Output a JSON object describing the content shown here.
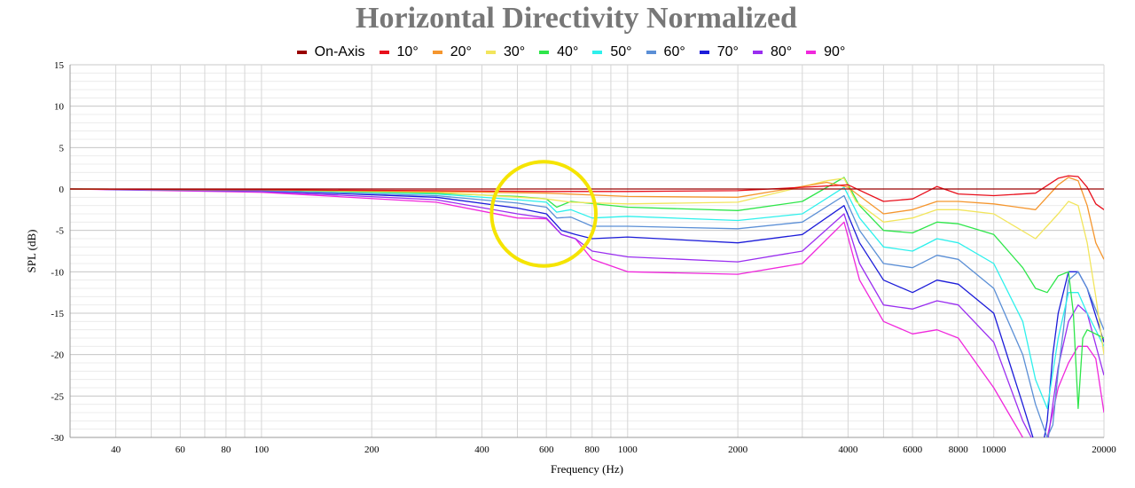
{
  "chart_data": {
    "type": "line",
    "title": "Horizontal Directivity Normalized",
    "xlabel": "Frequency (Hz)",
    "ylabel": "SPL (dB)",
    "xscale": "log",
    "xlim": [
      30,
      20000
    ],
    "ylim": [
      -30,
      15
    ],
    "grid": true,
    "legend_position": "top",
    "x_ticks": [
      40,
      60,
      80,
      100,
      200,
      400,
      600,
      800,
      1000,
      2000,
      4000,
      6000,
      8000,
      10000,
      20000
    ],
    "x_tick_labels": [
      "40",
      "60",
      "80",
      "100",
      "200",
      "400",
      "600",
      "800",
      "1000",
      "2000",
      "4000",
      "6000",
      "8000",
      "10000",
      "20000"
    ],
    "y_ticks": [
      15,
      10,
      5,
      0,
      -5,
      -10,
      -15,
      -20,
      -25,
      -30
    ],
    "y_tick_labels": [
      "15",
      "10",
      "5",
      "0",
      "-5",
      "-10",
      "-15",
      "-20",
      "-25",
      "-30"
    ],
    "annotation": {
      "shape": "circle",
      "color": "#f5e400",
      "center": [
        590,
        -3
      ],
      "radius_db": 6.3
    },
    "series": [
      {
        "name": "On-Axis",
        "color": "#990000",
        "x": [
          30,
          20000
        ],
        "y": [
          0,
          0
        ]
      },
      {
        "name": "10°",
        "color": "#e8101c",
        "x": [
          30,
          100,
          300,
          600,
          1000,
          2000,
          3000,
          4000,
          5000,
          6000,
          7000,
          8000,
          10000,
          13000,
          15000,
          16000,
          17000,
          18000,
          19000,
          20000
        ],
        "y": [
          0,
          -0.1,
          -0.2,
          -0.3,
          -0.3,
          -0.2,
          0.2,
          0.5,
          -1.5,
          -1.2,
          0.3,
          -0.6,
          -0.8,
          -0.5,
          1.3,
          1.6,
          1.5,
          0.2,
          -1.8,
          -2.5
        ]
      },
      {
        "name": "20°",
        "color": "#f5962e",
        "x": [
          30,
          100,
          300,
          600,
          1000,
          2000,
          3500,
          4000,
          5000,
          6000,
          7000,
          8000,
          10000,
          13000,
          15000,
          16000,
          17000,
          18000,
          19000,
          20000
        ],
        "y": [
          0,
          -0.1,
          -0.3,
          -0.5,
          -0.9,
          -1.0,
          0.8,
          0.2,
          -3.0,
          -2.5,
          -1.5,
          -1.5,
          -1.8,
          -2.5,
          0.5,
          1.4,
          1.0,
          -2.0,
          -6.5,
          -8.5
        ]
      },
      {
        "name": "30°",
        "color": "#f2e55c",
        "x": [
          30,
          100,
          300,
          600,
          700,
          1000,
          2000,
          3500,
          3900,
          4200,
          5000,
          6000,
          7000,
          8000,
          10000,
          13000,
          15000,
          16000,
          17000,
          18000,
          19000,
          20000
        ],
        "y": [
          0,
          -0.1,
          -0.4,
          -1.2,
          -1.6,
          -1.8,
          -1.6,
          1.0,
          1.3,
          -1.5,
          -4.0,
          -3.5,
          -2.5,
          -2.5,
          -3.0,
          -6.0,
          -3.0,
          -1.5,
          -2.0,
          -6.5,
          -13.0,
          -20.0
        ]
      },
      {
        "name": "40°",
        "color": "#2ee64a",
        "x": [
          30,
          100,
          300,
          500,
          600,
          640,
          700,
          1000,
          2000,
          3000,
          3900,
          4300,
          5000,
          6000,
          7000,
          8000,
          10000,
          12000,
          13000,
          14000,
          15000,
          16000,
          16500,
          17000,
          17500,
          18000,
          20000
        ],
        "y": [
          0,
          -0.1,
          -0.5,
          -0.9,
          -1.2,
          -2.2,
          -1.5,
          -2.2,
          -2.6,
          -1.5,
          1.4,
          -2.0,
          -5.0,
          -5.3,
          -4.0,
          -4.2,
          -5.5,
          -9.5,
          -12.0,
          -12.5,
          -10.5,
          -10.0,
          -15.0,
          -26.5,
          -18.0,
          -17.0,
          -18.0
        ]
      },
      {
        "name": "50°",
        "color": "#2ef0ec",
        "x": [
          30,
          100,
          300,
          500,
          600,
          640,
          700,
          800,
          1000,
          2000,
          3000,
          3900,
          4300,
          5000,
          6000,
          7000,
          8000,
          10000,
          12000,
          13000,
          14000,
          15000,
          16000,
          17000,
          18000,
          20000
        ],
        "y": [
          0,
          -0.1,
          -0.6,
          -1.3,
          -1.6,
          -2.8,
          -2.5,
          -3.5,
          -3.3,
          -3.8,
          -3.0,
          0.2,
          -3.5,
          -7.0,
          -7.5,
          -6.0,
          -6.5,
          -9.0,
          -16.0,
          -23.0,
          -26.5,
          -18.0,
          -12.5,
          -12.5,
          -15.0,
          -19.0
        ]
      },
      {
        "name": "60°",
        "color": "#5b8fd6",
        "x": [
          30,
          100,
          300,
          500,
          600,
          640,
          700,
          800,
          1000,
          2000,
          3000,
          3900,
          4300,
          5000,
          6000,
          7000,
          8000,
          10000,
          12000,
          13000,
          14000,
          14500,
          15000,
          15500,
          16000,
          17000,
          18000,
          20000
        ],
        "y": [
          0,
          -0.2,
          -0.8,
          -1.7,
          -2.2,
          -3.5,
          -3.4,
          -4.5,
          -4.5,
          -4.8,
          -4.0,
          -0.8,
          -5.0,
          -9.0,
          -9.5,
          -8.0,
          -8.5,
          -12.0,
          -20.0,
          -26.0,
          -30.0,
          -28.5,
          -22.0,
          -17.0,
          -11.0,
          -10.0,
          -12.0,
          -17.0
        ]
      },
      {
        "name": "70°",
        "color": "#1c1cd9",
        "x": [
          30,
          100,
          300,
          500,
          600,
          660,
          720,
          800,
          1000,
          2000,
          3000,
          3900,
          4300,
          5000,
          6000,
          7000,
          8000,
          10000,
          12000,
          13000,
          13500,
          14000,
          14500,
          15000,
          16000,
          17000,
          18000,
          20000
        ],
        "y": [
          0,
          -0.2,
          -1.0,
          -2.3,
          -3.0,
          -5.0,
          -5.5,
          -6.0,
          -5.8,
          -6.5,
          -5.5,
          -2.0,
          -6.5,
          -11.0,
          -12.5,
          -11.0,
          -11.5,
          -15.0,
          -26.0,
          -31.0,
          -32.0,
          -28.0,
          -20.0,
          -15.0,
          -10.0,
          -10.0,
          -12.0,
          -18.5
        ]
      },
      {
        "name": "80°",
        "color": "#9a2ef0",
        "x": [
          30,
          100,
          300,
          500,
          600,
          660,
          720,
          800,
          1000,
          2000,
          3000,
          3900,
          4300,
          5000,
          6000,
          7000,
          8000,
          10000,
          12000,
          13000,
          14000,
          14500,
          15000,
          16000,
          17000,
          18000,
          20000
        ],
        "y": [
          0,
          -0.3,
          -1.3,
          -3.0,
          -3.5,
          -5.5,
          -6.0,
          -7.5,
          -8.2,
          -8.8,
          -7.5,
          -3.0,
          -9.0,
          -14.0,
          -14.5,
          -13.5,
          -14.0,
          -18.5,
          -28.0,
          -31.0,
          -31.0,
          -26.0,
          -21.5,
          -16.0,
          -14.0,
          -15.0,
          -22.5
        ]
      },
      {
        "name": "90°",
        "color": "#f028dc",
        "x": [
          30,
          100,
          300,
          500,
          600,
          660,
          720,
          800,
          1000,
          2000,
          3000,
          3900,
          4300,
          5000,
          6000,
          7000,
          8000,
          10000,
          12000,
          13000,
          14000,
          14500,
          15000,
          16000,
          17000,
          18000,
          19000,
          20000
        ],
        "y": [
          0,
          -0.4,
          -1.6,
          -3.5,
          -3.6,
          -5.5,
          -6.0,
          -8.5,
          -10.0,
          -10.3,
          -9.0,
          -4.0,
          -11.0,
          -16.0,
          -17.5,
          -17.0,
          -18.0,
          -24.0,
          -30.0,
          -31.0,
          -30.0,
          -27.0,
          -24.0,
          -21.0,
          -19.0,
          -19.0,
          -20.5,
          -27.0
        ]
      }
    ]
  }
}
